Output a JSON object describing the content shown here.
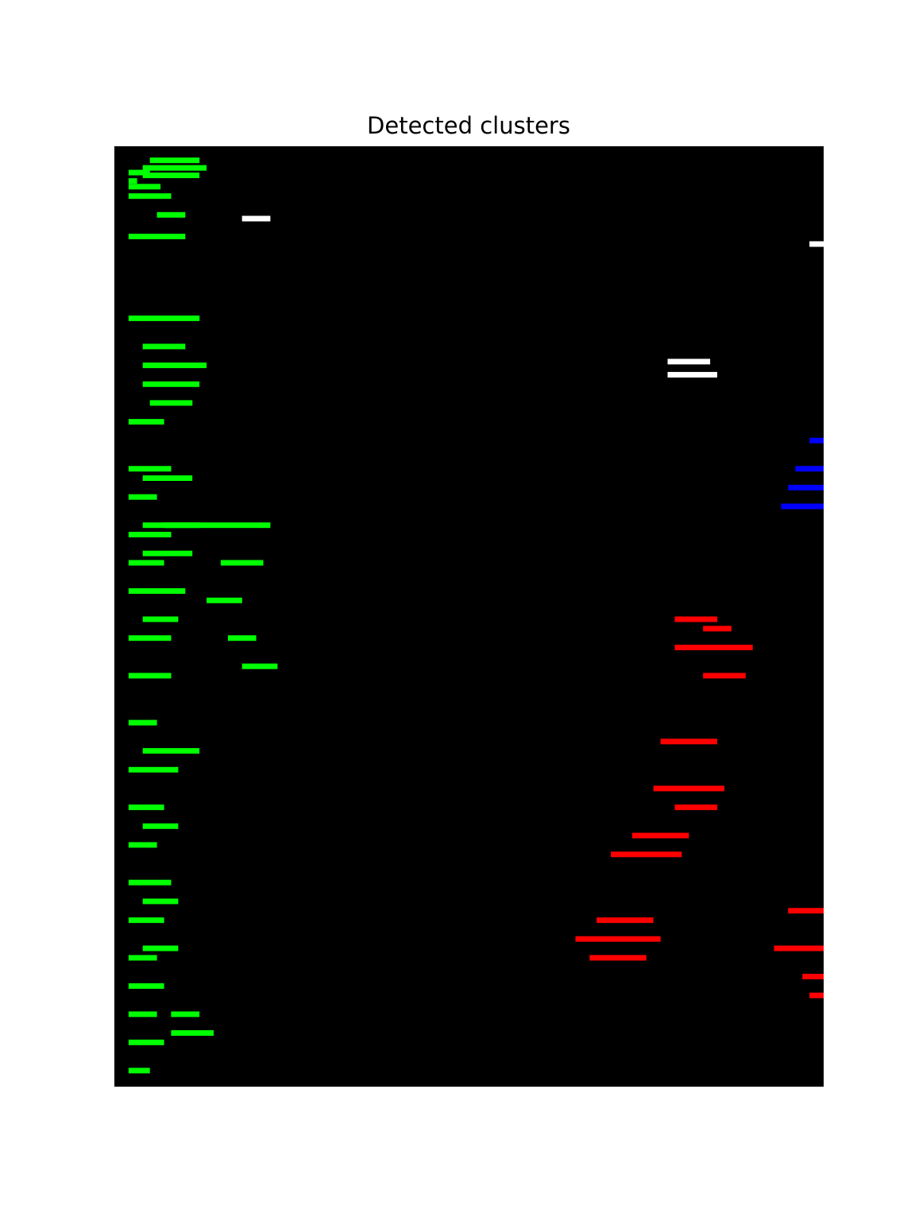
{
  "chart_data": {
    "type": "heatmap",
    "title": "Detected clusters",
    "xlabel": "",
    "ylabel": "",
    "xlim": [
      0,
      1
    ],
    "ylim": [
      0,
      1
    ],
    "grid": false,
    "axes_visible": false,
    "background_color": "#000000",
    "clusters": [
      {
        "color": "#00ff00",
        "regions": [
          [
            0.02,
            0.012,
            0.034
          ],
          [
            0.02,
            0.03,
            0.025
          ],
          [
            0.02,
            0.045,
            0.04
          ],
          [
            0.04,
            0.09,
            0.02
          ],
          [
            0.04,
            0.08,
            0.028
          ],
          [
            0.02,
            0.06,
            0.05
          ],
          [
            0.02,
            0.1,
            0.18
          ],
          [
            0.05,
            0.07,
            0.012
          ],
          [
            0.02,
            0.05,
            0.29
          ],
          [
            0.02,
            0.06,
            0.34
          ],
          [
            0.02,
            0.04,
            0.37
          ],
          [
            0.02,
            0.06,
            0.41
          ],
          [
            0.02,
            0.05,
            0.44
          ],
          [
            0.02,
            0.04,
            0.47
          ],
          [
            0.02,
            0.06,
            0.52
          ],
          [
            0.02,
            0.06,
            0.56
          ],
          [
            0.02,
            0.04,
            0.61
          ],
          [
            0.02,
            0.07,
            0.66
          ],
          [
            0.02,
            0.05,
            0.7
          ],
          [
            0.02,
            0.04,
            0.74
          ],
          [
            0.02,
            0.06,
            0.78
          ],
          [
            0.02,
            0.05,
            0.82
          ],
          [
            0.02,
            0.04,
            0.86
          ],
          [
            0.02,
            0.05,
            0.89
          ],
          [
            0.02,
            0.04,
            0.92
          ],
          [
            0.02,
            0.05,
            0.95
          ],
          [
            0.02,
            0.03,
            0.98
          ],
          [
            0.06,
            0.04,
            0.07
          ],
          [
            0.02,
            0.08,
            0.093
          ],
          [
            0.04,
            0.06,
            0.21
          ],
          [
            0.04,
            0.09,
            0.23
          ],
          [
            0.04,
            0.08,
            0.25
          ],
          [
            0.05,
            0.06,
            0.27
          ],
          [
            0.04,
            0.07,
            0.35
          ],
          [
            0.04,
            0.08,
            0.4
          ],
          [
            0.04,
            0.07,
            0.43
          ],
          [
            0.04,
            0.06,
            0.47
          ],
          [
            0.04,
            0.05,
            0.5
          ],
          [
            0.04,
            0.08,
            0.64
          ],
          [
            0.04,
            0.05,
            0.72
          ],
          [
            0.04,
            0.05,
            0.8
          ],
          [
            0.04,
            0.05,
            0.85
          ],
          [
            0.08,
            0.04,
            0.92
          ],
          [
            0.08,
            0.06,
            0.94
          ],
          [
            0.07,
            0.15,
            0.4
          ],
          [
            0.15,
            0.06,
            0.44
          ],
          [
            0.13,
            0.05,
            0.48
          ],
          [
            0.16,
            0.04,
            0.52
          ],
          [
            0.18,
            0.05,
            0.55
          ]
        ]
      },
      {
        "color": "#0000ff",
        "regions": [
          [
            0.98,
            0.02,
            0.31
          ],
          [
            0.96,
            0.04,
            0.34
          ],
          [
            0.95,
            0.05,
            0.36
          ],
          [
            0.94,
            0.06,
            0.38
          ]
        ]
      },
      {
        "color": "#ff0000",
        "regions": [
          [
            0.79,
            0.06,
            0.5
          ],
          [
            0.83,
            0.04,
            0.51
          ],
          [
            0.79,
            0.11,
            0.53
          ],
          [
            0.83,
            0.06,
            0.56
          ],
          [
            0.77,
            0.08,
            0.63
          ],
          [
            0.76,
            0.1,
            0.68
          ],
          [
            0.79,
            0.06,
            0.7
          ],
          [
            0.73,
            0.08,
            0.73
          ],
          [
            0.7,
            0.1,
            0.75
          ],
          [
            0.68,
            0.08,
            0.82
          ],
          [
            0.65,
            0.12,
            0.84
          ],
          [
            0.67,
            0.08,
            0.86
          ],
          [
            0.95,
            0.05,
            0.81
          ],
          [
            0.93,
            0.07,
            0.85
          ],
          [
            0.97,
            0.03,
            0.88
          ],
          [
            0.98,
            0.02,
            0.9
          ]
        ]
      },
      {
        "color": "#ffffff",
        "regions": [
          [
            0.18,
            0.04,
            0.074
          ],
          [
            0.78,
            0.06,
            0.226
          ],
          [
            0.78,
            0.07,
            0.24
          ],
          [
            0.98,
            0.02,
            0.101
          ]
        ]
      }
    ]
  }
}
